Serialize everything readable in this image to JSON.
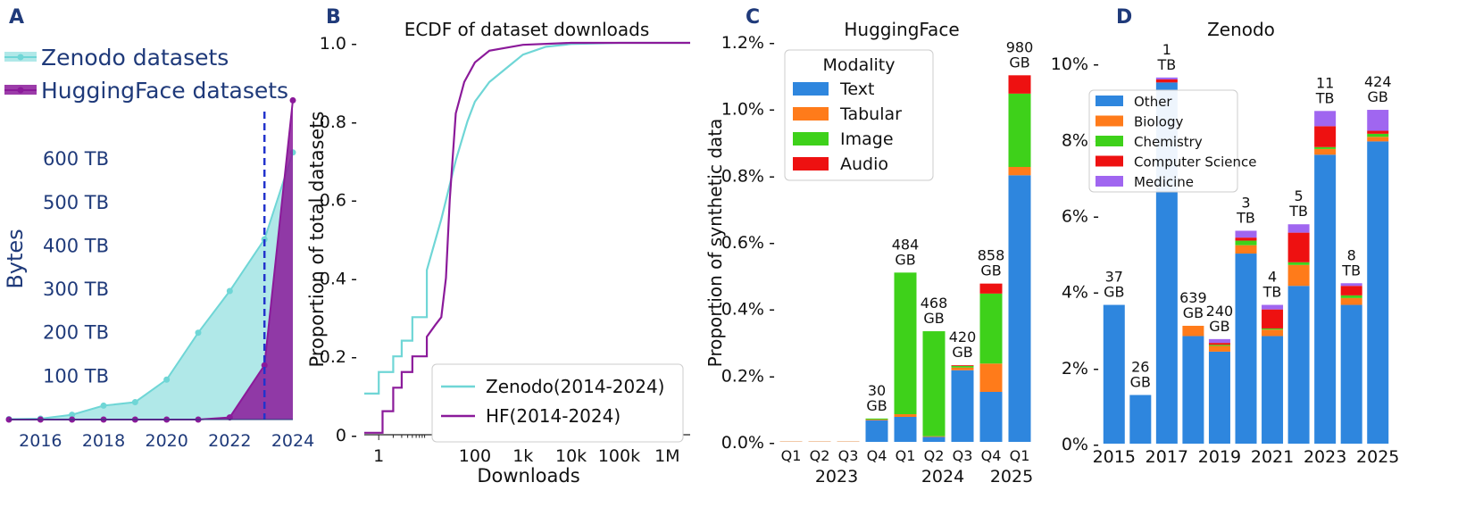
{
  "chart_data": [
    {
      "panel": "A",
      "type": "area",
      "ylabel": "Bytes",
      "x_ticks": [
        "2016",
        "2018",
        "2020",
        "2022",
        "2024"
      ],
      "y_ticks": [
        "100 TB",
        "200 TB",
        "300 TB",
        "400 TB",
        "500 TB",
        "600 TB"
      ],
      "ylim": [
        0,
        740
      ],
      "xlim": [
        2015,
        2024
      ],
      "vline_year": 2023.1,
      "series": [
        {
          "name": "Zenodo datasets",
          "color": "#6fd6d6",
          "x": [
            2015,
            2016,
            2017,
            2018,
            2019,
            2020,
            2021,
            2022,
            2023.1,
            2024
          ],
          "values": [
            1,
            2,
            11,
            32,
            40,
            92,
            200,
            296,
            415,
            615
          ]
        },
        {
          "name": "HuggingFace datasets",
          "color": "#8b1a9a",
          "x": [
            2015,
            2016,
            2017,
            2018,
            2019,
            2020,
            2021,
            2022,
            2023.1,
            2024
          ],
          "values": [
            0,
            0,
            0,
            0,
            0,
            0,
            0,
            5,
            125,
            735
          ]
        }
      ]
    },
    {
      "panel": "B",
      "type": "line",
      "title": "ECDF of dataset downloads",
      "xlabel": "Downloads",
      "ylabel": "Proportion of total datasets",
      "x_ticks": [
        "1",
        "100",
        "1k",
        "10k",
        "100k",
        "1M"
      ],
      "y_ticks": [
        "0",
        "0.2",
        "0.4",
        "0.6",
        "0.8",
        "1.0"
      ],
      "ylim": [
        0,
        1.0
      ],
      "series": [
        {
          "name": "Zenodo(2014-2024)",
          "color": "#6fd6d6",
          "x": [
            0.5,
            0.9,
            1,
            2,
            3,
            5,
            10,
            20,
            40,
            70,
            100,
            200,
            500,
            1000,
            3000,
            10000,
            100000,
            3000000
          ],
          "values": [
            0.105,
            0.105,
            0.16,
            0.2,
            0.24,
            0.3,
            0.42,
            0.55,
            0.7,
            0.8,
            0.85,
            0.9,
            0.94,
            0.97,
            0.99,
            0.997,
            1.0,
            1.0
          ]
        },
        {
          "name": "HF(2014-2024)",
          "color": "#8b1a9a",
          "x": [
            0.5,
            0.8,
            1.2,
            2,
            3,
            5,
            10,
            15,
            20,
            25,
            30,
            40,
            60,
            100,
            200,
            1000,
            10000,
            100000,
            3000000
          ],
          "values": [
            0.005,
            0.005,
            0.06,
            0.12,
            0.16,
            0.2,
            0.25,
            0.28,
            0.3,
            0.4,
            0.6,
            0.82,
            0.9,
            0.95,
            0.98,
            0.995,
            1.0,
            1.0,
            1.0
          ]
        }
      ]
    },
    {
      "panel": "C",
      "type": "bar",
      "title": "HuggingFace",
      "ylabel": "Proportion of synthetic data",
      "ylim": [
        0,
        1.2
      ],
      "y_ticks": [
        "0.0%",
        "0.2%",
        "0.4%",
        "0.6%",
        "0.8%",
        "1.0%",
        "1.2%"
      ],
      "categories": [
        "Q1",
        "Q2",
        "Q3",
        "Q4",
        "Q1",
        "Q2",
        "Q3",
        "Q4",
        "Q1"
      ],
      "year_labels": [
        "2023",
        "2024",
        "2025"
      ],
      "legend_title": "Modality",
      "series": [
        {
          "name": "Text",
          "color": "#2e86de",
          "values": [
            0.0,
            0.0,
            0.0,
            0.065,
            0.075,
            0.015,
            0.215,
            0.15,
            0.8
          ]
        },
        {
          "name": "Tabular",
          "color": "#ff7b1a",
          "values": [
            0.0,
            0.0,
            0.0,
            0.002,
            0.008,
            0.002,
            0.008,
            0.085,
            0.025
          ]
        },
        {
          "name": "Image",
          "color": "#3ed11a",
          "values": [
            0.0,
            0.0,
            0.0,
            0.003,
            0.425,
            0.315,
            0.005,
            0.21,
            0.22
          ]
        },
        {
          "name": "Audio",
          "color": "#ee1111",
          "values": [
            0.0,
            0.0,
            0.0,
            0.0,
            0.0,
            0.0,
            0.002,
            0.03,
            0.055
          ]
        }
      ],
      "bar_labels": [
        {
          "index": 3,
          "lines": [
            "30",
            "GB"
          ]
        },
        {
          "index": 4,
          "lines": [
            "484",
            "GB"
          ]
        },
        {
          "index": 5,
          "lines": [
            "468",
            "GB"
          ]
        },
        {
          "index": 6,
          "lines": [
            "420",
            "GB"
          ]
        },
        {
          "index": 7,
          "lines": [
            "858",
            "GB"
          ]
        },
        {
          "index": 8,
          "lines": [
            "980",
            "GB"
          ]
        }
      ]
    },
    {
      "panel": "D",
      "type": "bar",
      "title": "Zenodo",
      "ylim": [
        0,
        10.8
      ],
      "y_ticks": [
        "0%",
        "2%",
        "4%",
        "6%",
        "8%",
        "10%"
      ],
      "categories": [
        "2015",
        "2016",
        "2017",
        "2018",
        "2019",
        "2020",
        "2021",
        "2022",
        "2023",
        "2024",
        "2025"
      ],
      "x_tick_labels": [
        "2015",
        "2017",
        "2019",
        "2021",
        "2023",
        "2025"
      ],
      "series": [
        {
          "name": "Other",
          "color": "#2e86de",
          "values": [
            3.65,
            1.28,
            9.5,
            2.83,
            2.42,
            5.0,
            2.83,
            4.15,
            7.6,
            3.65,
            7.95
          ]
        },
        {
          "name": "Biology",
          "color": "#ff7b1a",
          "values": [
            0.0,
            0.0,
            0.0,
            0.27,
            0.15,
            0.22,
            0.17,
            0.55,
            0.15,
            0.18,
            0.12
          ]
        },
        {
          "name": "Chemistry",
          "color": "#3ed11a",
          "values": [
            0.0,
            0.0,
            0.0,
            0.0,
            0.03,
            0.12,
            0.03,
            0.07,
            0.05,
            0.07,
            0.08
          ]
        },
        {
          "name": "Computer Science",
          "color": "#ee1111",
          "values": [
            0.0,
            0.0,
            0.08,
            0.0,
            0.05,
            0.08,
            0.5,
            0.78,
            0.55,
            0.25,
            0.08
          ]
        },
        {
          "name": "Medicine",
          "color": "#a066f0",
          "values": [
            0.0,
            0.0,
            0.05,
            0.0,
            0.1,
            0.18,
            0.12,
            0.22,
            0.4,
            0.07,
            0.55
          ]
        }
      ],
      "bar_labels": [
        {
          "index": 0,
          "lines": [
            "37",
            "GB"
          ]
        },
        {
          "index": 1,
          "lines": [
            "26",
            "GB"
          ]
        },
        {
          "index": 2,
          "lines": [
            "1",
            "TB"
          ]
        },
        {
          "index": 3,
          "lines": [
            "639",
            "GB"
          ]
        },
        {
          "index": 4,
          "lines": [
            "240",
            "GB"
          ]
        },
        {
          "index": 5,
          "lines": [
            "3",
            "TB"
          ]
        },
        {
          "index": 6,
          "lines": [
            "4",
            "TB"
          ]
        },
        {
          "index": 7,
          "lines": [
            "5",
            "TB"
          ]
        },
        {
          "index": 8,
          "lines": [
            "11",
            "TB"
          ]
        },
        {
          "index": 9,
          "lines": [
            "8",
            "TB"
          ]
        },
        {
          "index": 10,
          "lines": [
            "424",
            "GB"
          ]
        }
      ]
    }
  ]
}
